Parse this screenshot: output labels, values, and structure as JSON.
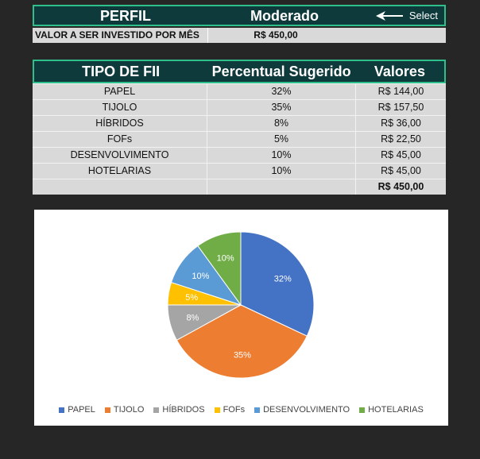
{
  "profile": {
    "label": "PERFIL",
    "value": "Moderado",
    "select_label": "Select"
  },
  "investment": {
    "label": "VALOR A SER INVESTIDO POR MÊS",
    "value": "R$ 450,00"
  },
  "table": {
    "headers": [
      "TIPO DE FII",
      "Percentual Sugerido",
      "Valores"
    ],
    "rows": [
      {
        "type": "PAPEL",
        "percent": "32%",
        "value": "R$ 144,00"
      },
      {
        "type": "TIJOLO",
        "percent": "35%",
        "value": "R$ 157,50"
      },
      {
        "type": "HÍBRIDOS",
        "percent": "8%",
        "value": "R$ 36,00"
      },
      {
        "type": "FOFs",
        "percent": "5%",
        "value": "R$ 22,50"
      },
      {
        "type": "DESENVOLVIMENTO",
        "percent": "10%",
        "value": "R$ 45,00"
      },
      {
        "type": "HOTELARIAS",
        "percent": "10%",
        "value": "R$ 45,00"
      }
    ],
    "total": "R$ 450,00"
  },
  "chart_data": {
    "type": "pie",
    "title": "",
    "categories": [
      "PAPEL",
      "TIJOLO",
      "HÍBRIDOS",
      "FOFs",
      "DESENVOLVIMENTO",
      "HOTELARIAS"
    ],
    "values": [
      32,
      35,
      8,
      5,
      10,
      10
    ],
    "labels": [
      "32%",
      "35%",
      "8%",
      "5%",
      "10%",
      "10%"
    ],
    "colors": [
      "#4472c4",
      "#ed7d31",
      "#a5a5a5",
      "#ffc000",
      "#5b9bd5",
      "#70ad47"
    ],
    "legend_position": "bottom"
  }
}
